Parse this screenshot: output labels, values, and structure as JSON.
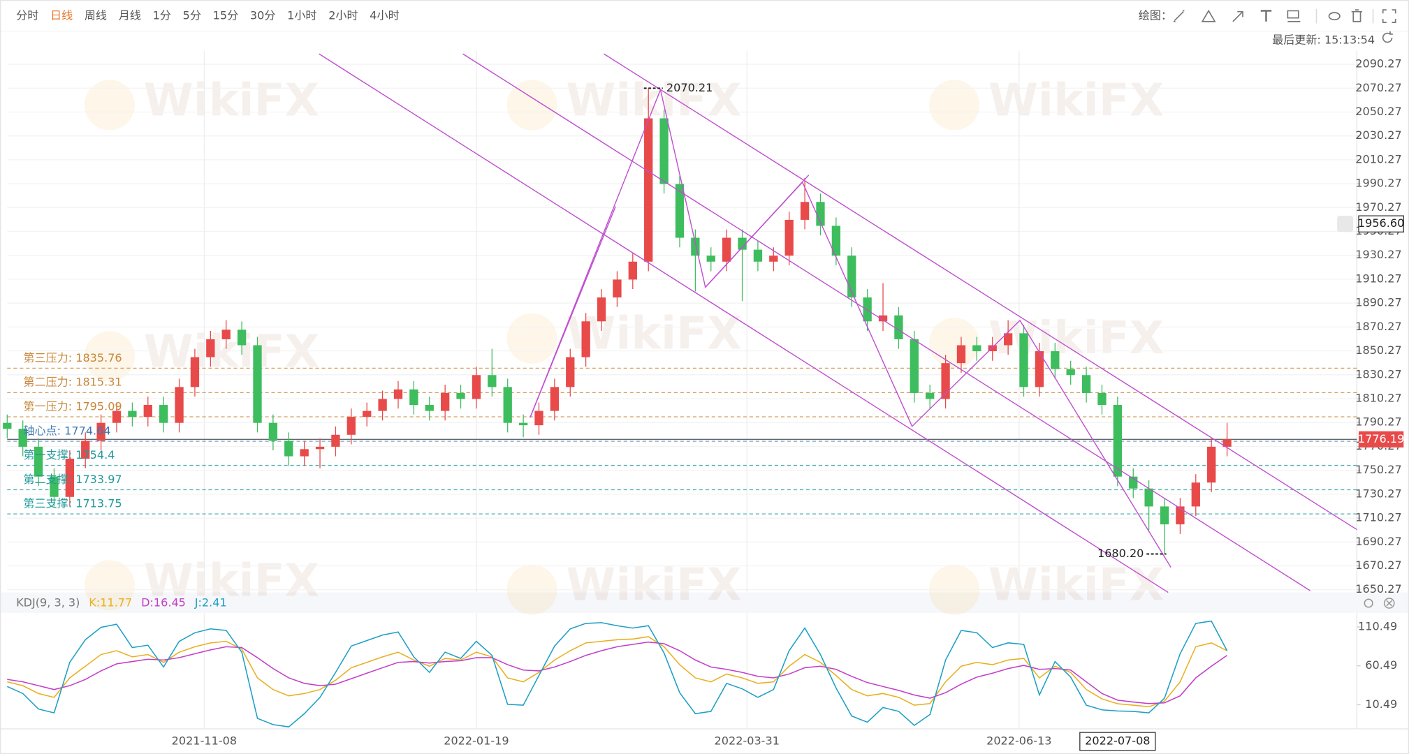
{
  "toolbar": {
    "periods": [
      "分时",
      "日线",
      "周线",
      "月线",
      "1分",
      "5分",
      "15分",
      "30分",
      "1小时",
      "2小时",
      "4小时"
    ],
    "active_period_index": 1,
    "draw_label": "绘图：",
    "last_update": "最后更新: 15:13:54"
  },
  "watermark": "WikiFX",
  "chart_data": [
    {
      "type": "candlestick",
      "up_color": "#e84a4a",
      "down_color": "#3dbd5e",
      "open": [
        1790,
        1785,
        1770,
        1745,
        1728,
        1760,
        1775,
        1790,
        1800,
        1795,
        1805,
        1790,
        1820,
        1845,
        1860,
        1868,
        1855,
        1790,
        1775,
        1762,
        1768,
        1770,
        1780,
        1795,
        1800,
        1810,
        1818,
        1805,
        1800,
        1815,
        1810,
        1830,
        1820,
        1790,
        1788,
        1800,
        1820,
        1845,
        1875,
        1895,
        1910,
        1925,
        2045,
        1990,
        1945,
        1930,
        1925,
        1945,
        1935,
        1925,
        1930,
        1960,
        1975,
        1955,
        1930,
        1895,
        1875,
        1880,
        1860,
        1815,
        1810,
        1840,
        1855,
        1850,
        1855,
        1865,
        1820,
        1850,
        1835,
        1830,
        1815,
        1805,
        1745,
        1735,
        1720,
        1705,
        1720,
        1740,
        1770
      ],
      "high": [
        1797,
        1792,
        1777,
        1752,
        1767,
        1782,
        1797,
        1807,
        1807,
        1812,
        1812,
        1827,
        1852,
        1867,
        1876,
        1875,
        1862,
        1797,
        1782,
        1775,
        1777,
        1787,
        1802,
        1807,
        1817,
        1825,
        1825,
        1812,
        1822,
        1822,
        1837,
        1852,
        1827,
        1797,
        1807,
        1827,
        1852,
        1882,
        1902,
        1917,
        1932,
        2070.21,
        2052,
        1997,
        1952,
        1937,
        1952,
        1952,
        1942,
        1937,
        1967,
        1995,
        1982,
        1962,
        1937,
        1902,
        1907,
        1887,
        1867,
        1822,
        1847,
        1862,
        1862,
        1862,
        1876,
        1872,
        1857,
        1857,
        1842,
        1837,
        1822,
        1812,
        1752,
        1742,
        1727,
        1727,
        1747,
        1777,
        1790
      ],
      "low": [
        1777,
        1762,
        1737,
        1720,
        1720,
        1752,
        1767,
        1782,
        1787,
        1787,
        1782,
        1782,
        1812,
        1837,
        1852,
        1847,
        1782,
        1767,
        1754,
        1754,
        1752,
        1762,
        1772,
        1787,
        1792,
        1802,
        1797,
        1792,
        1792,
        1802,
        1802,
        1812,
        1782,
        1778,
        1780,
        1792,
        1812,
        1837,
        1867,
        1887,
        1902,
        1917,
        1982,
        1937,
        1900,
        1917,
        1917,
        1892,
        1917,
        1917,
        1922,
        1952,
        1947,
        1922,
        1887,
        1867,
        1867,
        1852,
        1807,
        1802,
        1802,
        1832,
        1842,
        1842,
        1847,
        1812,
        1812,
        1827,
        1822,
        1807,
        1797,
        1737,
        1727,
        1700,
        1680.2,
        1697,
        1712,
        1732,
        1762
      ],
      "close": [
        1785,
        1770,
        1745,
        1728,
        1760,
        1775,
        1790,
        1800,
        1795,
        1805,
        1790,
        1820,
        1845,
        1860,
        1868,
        1855,
        1790,
        1775,
        1762,
        1768,
        1770,
        1780,
        1795,
        1800,
        1810,
        1818,
        1805,
        1800,
        1815,
        1810,
        1830,
        1820,
        1790,
        1788,
        1800,
        1820,
        1845,
        1875,
        1895,
        1910,
        1925,
        2045,
        1990,
        1945,
        1930,
        1925,
        1945,
        1935,
        1925,
        1930,
        1960,
        1975,
        1955,
        1930,
        1895,
        1875,
        1880,
        1860,
        1815,
        1810,
        1840,
        1855,
        1850,
        1855,
        1865,
        1820,
        1850,
        1835,
        1830,
        1815,
        1805,
        1745,
        1735,
        1720,
        1705,
        1720,
        1740,
        1770,
        1776.19
      ],
      "xlim": [
        0,
        86.3
      ],
      "xticks": [
        {
          "value": 12.6,
          "label": "2021-11-08"
        },
        {
          "value": 30,
          "label": "2022-01-19"
        },
        {
          "value": 47.3,
          "label": "2022-03-31"
        },
        {
          "value": 64.7,
          "label": "2022-06-13"
        }
      ],
      "ylim": [
        1648,
        2099
      ],
      "yticks": [
        1650.27,
        1670.27,
        1690.27,
        1710.27,
        1730.27,
        1750.27,
        1770.27,
        1790.27,
        1810.27,
        1830.27,
        1850.27,
        1870.27,
        1890.27,
        1910.27,
        1930.27,
        1950.27,
        1970.27,
        1990.27,
        2010.27,
        2030.27,
        2050.27,
        2070.27,
        2090.27
      ],
      "grid": true,
      "last_price_color": "#e84a4a",
      "levels": [
        {
          "label": "第三压力: 1835.76",
          "value": 1835.76,
          "color": "#c8883a"
        },
        {
          "label": "第二压力: 1815.31",
          "value": 1815.31,
          "color": "#c8883a"
        },
        {
          "label": "第一压力: 1795.09",
          "value": 1795.09,
          "color": "#c8883a"
        },
        {
          "label": "轴心点: 1774.64",
          "value": 1774.64,
          "color": "#3f78b0"
        },
        {
          "label": "第一支撑: 1754.4",
          "value": 1754.4,
          "color": "#22999a"
        },
        {
          "label": "第二支撑: 1733.97",
          "value": 1733.97,
          "color": "#22999a"
        },
        {
          "label": "第三支撑: 1713.75",
          "value": 1713.75,
          "color": "#22999a"
        }
      ],
      "annotations": [
        {
          "value": 2070.21,
          "label": "2070.21"
        },
        {
          "value": 1680.2,
          "label": "1680.20"
        }
      ],
      "crosshair": {
        "x": {
          "value": 71,
          "label": "2022-07-08"
        },
        "y": {
          "value": 1956.6,
          "label": "1956.60"
        }
      }
    },
    {
      "type": "line",
      "title": "KDJ(9, 3, 3)",
      "xlim": [
        0,
        86.3
      ],
      "ylim": [
        -20.5,
        128.3
      ],
      "yticks": [
        10.49,
        60.49,
        110.49
      ],
      "readout": [
        {
          "value": 11.77,
          "label": "K:11.77"
        },
        {
          "value": 16.45,
          "label": "D:16.45"
        },
        {
          "value": 2.41,
          "label": "J:2.41"
        }
      ],
      "series": [
        {
          "name": "K",
          "color": "#e8b020",
          "values": [
            40,
            35,
            25,
            20,
            45,
            60,
            75,
            80,
            72,
            75,
            65,
            78,
            85,
            90,
            92,
            82,
            45,
            30,
            22,
            25,
            30,
            42,
            58,
            65,
            72,
            78,
            68,
            60,
            70,
            68,
            78,
            72,
            45,
            40,
            52,
            68,
            80,
            90,
            92,
            94,
            95,
            98,
            85,
            62,
            45,
            40,
            50,
            45,
            38,
            40,
            60,
            75,
            65,
            48,
            30,
            22,
            25,
            20,
            10,
            12,
            40,
            60,
            65,
            62,
            68,
            70,
            45,
            60,
            52,
            30,
            18,
            11.77,
            10,
            8,
            15,
            40,
            85,
            90,
            80
          ]
        },
        {
          "name": "D",
          "color": "#c23fc9",
          "values": [
            43,
            40,
            35,
            30,
            35,
            43,
            54,
            63,
            66,
            69,
            68,
            71,
            76,
            81,
            85,
            84,
            71,
            57,
            45,
            38,
            35,
            37,
            44,
            51,
            58,
            65,
            66,
            64,
            66,
            67,
            71,
            71,
            62,
            55,
            54,
            59,
            66,
            74,
            80,
            85,
            88,
            91,
            89,
            80,
            68,
            59,
            56,
            52,
            47,
            45,
            50,
            58,
            60,
            56,
            47,
            39,
            34,
            29,
            23,
            19,
            26,
            37,
            46,
            51,
            57,
            61,
            56,
            57,
            55,
            40,
            25,
            16.45,
            14,
            12,
            13,
            22,
            45,
            60,
            74
          ]
        },
        {
          "name": "J",
          "color": "#1d9fc6",
          "values": [
            34,
            25,
            5,
            0,
            65,
            94,
            110,
            114,
            84,
            87,
            59,
            92,
            103,
            108,
            106,
            78,
            -7,
            -15,
            -18,
            -1,
            20,
            52,
            86,
            93,
            100,
            104,
            72,
            52,
            78,
            70,
            92,
            74,
            11,
            10,
            48,
            86,
            108,
            115,
            116,
            112,
            109,
            112,
            77,
            26,
            -1,
            2,
            38,
            31,
            20,
            30,
            80,
            109,
            75,
            32,
            -4,
            -12,
            7,
            2,
            -16,
            -2,
            68,
            106,
            103,
            84,
            90,
            88,
            23,
            66,
            46,
            10,
            4,
            2.41,
            2,
            0,
            19,
            76,
            115,
            118,
            80
          ]
        }
      ]
    }
  ]
}
